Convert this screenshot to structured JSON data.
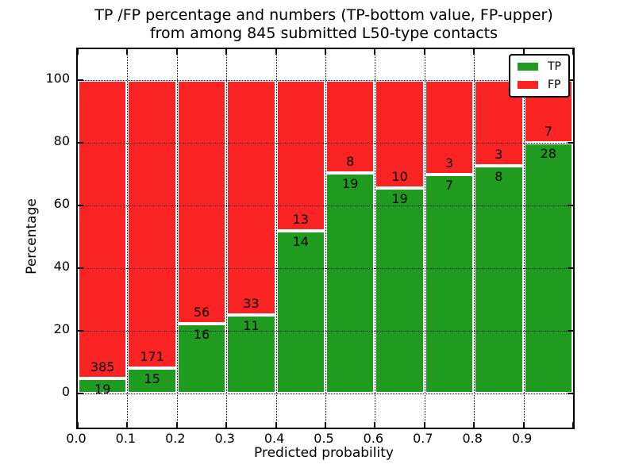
{
  "figure": {
    "title_line1": "TP /FP percentage and numbers (TP-bottom value, FP-upper)",
    "title_line2": "from among 845 submitted L50-type contacts",
    "xlabel": "Predicted probability",
    "ylabel": "Percentage"
  },
  "legend": {
    "items": [
      {
        "label": "TP",
        "color": "#1f9b1f"
      },
      {
        "label": "FP",
        "color": "#f92323"
      }
    ]
  },
  "chart_data": {
    "type": "bar",
    "variant": "stacked-percentage",
    "title": "TP /FP percentage and numbers (TP-bottom value, FP-upper) from among 845 submitted L50-type contacts",
    "xlabel": "Predicted probability",
    "ylabel": "Percentage",
    "total_contacts": 845,
    "bin_edges": [
      0.0,
      0.1,
      0.2,
      0.3,
      0.4,
      0.5,
      0.6,
      0.7,
      0.8,
      0.9,
      1.0
    ],
    "series": [
      {
        "name": "TP",
        "color": "#1f9b1f",
        "counts": [
          19,
          15,
          16,
          11,
          14,
          19,
          19,
          7,
          8,
          28
        ]
      },
      {
        "name": "FP",
        "color": "#f92323",
        "counts": [
          385,
          171,
          56,
          33,
          13,
          8,
          10,
          3,
          3,
          7
        ]
      }
    ],
    "tp_percent_of_bin": [
      4.7,
      8.1,
      22.2,
      25.0,
      51.9,
      70.4,
      65.5,
      70.0,
      72.7,
      80.0
    ],
    "x_tick_labels": [
      "0.0",
      "0.1",
      "0.2",
      "0.3",
      "0.4",
      "0.5",
      "0.6",
      "0.7",
      "0.8",
      "0.9"
    ],
    "y_tick_values": [
      0,
      20,
      40,
      60,
      80,
      100
    ],
    "xlim": [
      0.0,
      1.0
    ],
    "ylim": [
      -11,
      110
    ],
    "grid": "dotted, both axes, drawn over bars",
    "legend_position": "upper right",
    "bar_edge_color": "#ffffff"
  }
}
